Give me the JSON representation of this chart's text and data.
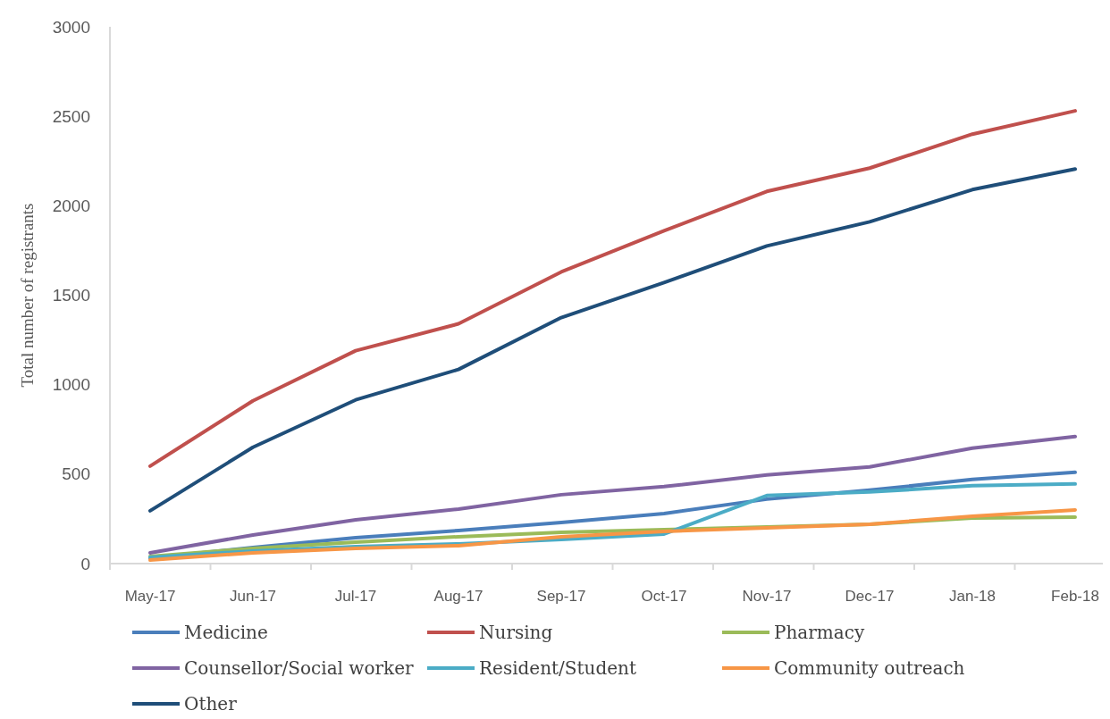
{
  "chart_data": {
    "type": "line",
    "ylabel": "Total number of registrants",
    "categories": [
      "May-17",
      "Jun-17",
      "Jul-17",
      "Aug-17",
      "Sep-17",
      "Oct-17",
      "Nov-17",
      "Dec-17",
      "Jan-18",
      "Feb-18"
    ],
    "ylim": [
      0,
      3000
    ],
    "yticks": [
      0,
      500,
      1000,
      1500,
      2000,
      2500,
      3000
    ],
    "grid": false,
    "legend": "bottom",
    "marker": "none",
    "line_style": "solid",
    "series": [
      {
        "name": "Medicine",
        "color": "#4a7ebb",
        "values": [
          30,
          90,
          145,
          185,
          230,
          280,
          360,
          410,
          470,
          510
        ]
      },
      {
        "name": "Nursing",
        "color": "#c0504d",
        "values": [
          545,
          910,
          1190,
          1340,
          1630,
          1860,
          2080,
          2210,
          2400,
          2530
        ]
      },
      {
        "name": "Pharmacy",
        "color": "#9bbb59",
        "values": [
          40,
          85,
          120,
          150,
          175,
          190,
          205,
          220,
          255,
          260
        ]
      },
      {
        "name": "Counsellor/Social worker",
        "color": "#8064a2",
        "values": [
          60,
          160,
          245,
          305,
          385,
          430,
          495,
          540,
          645,
          710
        ]
      },
      {
        "name": "Resident/Student",
        "color": "#4bacc6",
        "values": [
          35,
          70,
          95,
          110,
          135,
          165,
          380,
          400,
          435,
          445
        ]
      },
      {
        "name": "Community outreach",
        "color": "#f79646",
        "values": [
          20,
          60,
          85,
          100,
          150,
          180,
          200,
          220,
          265,
          300
        ]
      },
      {
        "name": "Other",
        "color": "#1f4e79",
        "values": [
          295,
          650,
          915,
          1085,
          1375,
          1570,
          1775,
          1910,
          2090,
          2205
        ]
      }
    ]
  }
}
